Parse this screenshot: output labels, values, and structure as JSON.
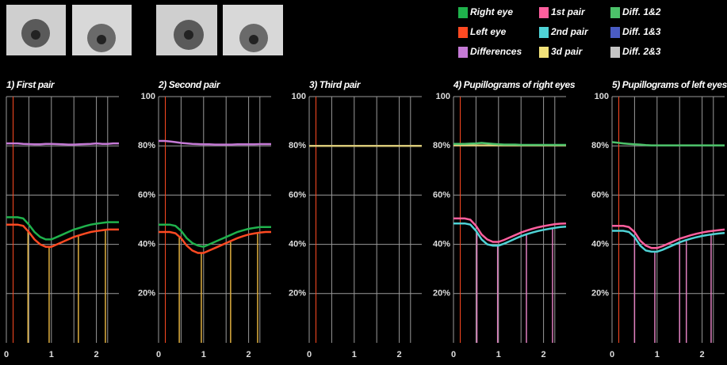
{
  "legend": [
    {
      "label": "Right eye",
      "color": "#1fb24c"
    },
    {
      "label": "Left eye",
      "color": "#ff4a22"
    },
    {
      "label": "Differences",
      "color": "#c57ad6"
    },
    {
      "label": "1st pair",
      "color": "#ff5f9e"
    },
    {
      "label": "2nd pair",
      "color": "#4fd3d6"
    },
    {
      "label": "3d pair",
      "color": "#f2e27a"
    },
    {
      "label": "Diff. 1&2",
      "color": "#4cc26a"
    },
    {
      "label": "Diff. 1&3",
      "color": "#4a5cc4"
    },
    {
      "label": "Diff. 2&3",
      "color": "#c4c4c4"
    }
  ],
  "chart_data": [
    {
      "type": "line",
      "title": "1) First pair",
      "xlim": [
        0,
        2.5
      ],
      "xticks": [
        0,
        1,
        2
      ],
      "ylim": [
        0,
        100
      ],
      "yticks": [
        20,
        40,
        60,
        80,
        100
      ],
      "ytick_labels": false,
      "grid": true,
      "stimulus": 0.15,
      "stimulus_color": "#ff4a22",
      "events": [
        0.48,
        0.95,
        1.6,
        2.2
      ],
      "event_color": "#e0b040",
      "x": [
        0,
        0.125,
        0.25,
        0.375,
        0.5,
        0.625,
        0.75,
        0.875,
        1,
        1.125,
        1.25,
        1.375,
        1.5,
        1.625,
        1.75,
        1.875,
        2,
        2.125,
        2.25,
        2.375,
        2.5
      ],
      "series": [
        {
          "color": "#ff4a22",
          "values": [
            48,
            48,
            48,
            47.5,
            45,
            42,
            40,
            39,
            39,
            40,
            41,
            42,
            43,
            43.7,
            44.4,
            45,
            45.4,
            45.7,
            46,
            46,
            46
          ]
        },
        {
          "color": "#1fb24c",
          "values": [
            51,
            51,
            51,
            50.5,
            48,
            45,
            43,
            42,
            42,
            43,
            44,
            45,
            46,
            46.7,
            47.4,
            48,
            48.4,
            48.7,
            49,
            49,
            49
          ]
        },
        {
          "color": "#c57ad6",
          "values": [
            81,
            81,
            81,
            80.8,
            80.7,
            80.6,
            80.6,
            80.8,
            80.8,
            80.7,
            80.6,
            80.5,
            80.5,
            80.6,
            80.7,
            80.8,
            81,
            80.8,
            80.8,
            81,
            81
          ]
        }
      ]
    },
    {
      "type": "line",
      "title": "2) Second pair",
      "xlim": [
        0,
        2.5
      ],
      "xticks": [
        0,
        1,
        2
      ],
      "ylim": [
        0,
        100
      ],
      "yticks": [
        {
          "value": 20,
          "label": "20%"
        },
        {
          "value": 40,
          "label": "40%"
        },
        {
          "value": 60,
          "label": "60%"
        },
        {
          "value": 80,
          "label": "80%"
        },
        100
      ],
      "ytick_labels": true,
      "grid": true,
      "stimulus": 0.15,
      "stimulus_color": "#ff4a22",
      "events": [
        0.46,
        0.95,
        1.6,
        2.2
      ],
      "event_color": "#e0b040",
      "x": [
        0,
        0.125,
        0.25,
        0.375,
        0.5,
        0.625,
        0.75,
        0.875,
        1,
        1.125,
        1.25,
        1.375,
        1.5,
        1.625,
        1.75,
        1.875,
        2,
        2.125,
        2.25,
        2.375,
        2.5
      ],
      "series": [
        {
          "color": "#ff4a22",
          "values": [
            45,
            45,
            45,
            44.5,
            42.5,
            39.5,
            37.5,
            36.5,
            36.5,
            37.5,
            38.5,
            39.5,
            40.5,
            41.5,
            42.5,
            43.3,
            44,
            44.4,
            44.8,
            45,
            45
          ]
        },
        {
          "color": "#1fb24c",
          "values": [
            48,
            48,
            48,
            47.5,
            45.5,
            42.5,
            40.5,
            39.5,
            39,
            40,
            41,
            42,
            43,
            44,
            45,
            45.7,
            46.3,
            46.7,
            47,
            47,
            47
          ]
        },
        {
          "color": "#c57ad6",
          "values": [
            82,
            82,
            81.8,
            81.5,
            81.2,
            81,
            80.8,
            80.7,
            80.6,
            80.6,
            80.5,
            80.5,
            80.5,
            80.5,
            80.6,
            80.6,
            80.6,
            80.6,
            80.7,
            80.7,
            80.7
          ]
        }
      ]
    },
    {
      "type": "line",
      "title": "3) Third pair",
      "xlim": [
        0,
        2.5
      ],
      "xticks": [
        0,
        1,
        2
      ],
      "ylim": [
        0,
        100
      ],
      "yticks": [
        {
          "value": 20,
          "label": "20%"
        },
        {
          "value": 40,
          "label": "40%"
        },
        {
          "value": 60,
          "label": "60%"
        },
        {
          "value": 80,
          "label": "80%"
        },
        100
      ],
      "ytick_labels": true,
      "grid": true,
      "stimulus": 0.15,
      "stimulus_color": "#ff4a22",
      "events": [],
      "event_color": "#e0b040",
      "x": [
        0,
        0.125,
        0.25,
        0.375,
        0.5,
        0.625,
        0.75,
        0.875,
        1,
        1.125,
        1.25,
        1.375,
        1.5,
        1.625,
        1.75,
        1.875,
        2,
        2.125,
        2.25,
        2.375,
        2.5
      ],
      "series": [
        {
          "color": "#d8c878",
          "values": [
            80,
            80,
            80,
            80,
            80,
            80,
            80,
            80,
            80,
            80,
            80,
            80,
            80,
            80,
            80,
            80,
            80,
            80,
            80,
            80,
            80
          ]
        }
      ]
    },
    {
      "type": "line",
      "title": "4) Pupillograms of right eyes",
      "xlim": [
        0,
        2.5
      ],
      "xticks": [
        0,
        1,
        2
      ],
      "ylim": [
        0,
        100
      ],
      "yticks": [
        {
          "value": 20,
          "label": "20%"
        },
        {
          "value": 40,
          "label": "40%"
        },
        {
          "value": 60,
          "label": "60%"
        },
        {
          "value": 80,
          "label": "80%"
        },
        100
      ],
      "ytick_labels": true,
      "grid": true,
      "stimulus": 0.15,
      "stimulus_color": "#ff4a22",
      "events": [
        0.52,
        0.98,
        1.62,
        2.2
      ],
      "event_color": "#e080c0",
      "x": [
        0,
        0.125,
        0.25,
        0.375,
        0.5,
        0.625,
        0.75,
        0.875,
        1,
        1.125,
        1.25,
        1.375,
        1.5,
        1.625,
        1.75,
        1.875,
        2,
        2.125,
        2.25,
        2.375,
        2.5
      ],
      "series": [
        {
          "color": "#4fd3d6",
          "values": [
            48.5,
            48.5,
            48.5,
            48,
            45.5,
            42,
            40,
            39.5,
            39.5,
            40.3,
            41.3,
            42.3,
            43.3,
            44.1,
            44.8,
            45.4,
            45.9,
            46.3,
            46.7,
            47,
            47.2
          ]
        },
        {
          "color": "#ff5f9e",
          "values": [
            50.5,
            50.5,
            50.5,
            50,
            47.5,
            44,
            42,
            41,
            41,
            41.8,
            42.8,
            43.8,
            44.8,
            45.6,
            46.3,
            46.9,
            47.4,
            47.8,
            48.2,
            48.4,
            48.5
          ]
        },
        {
          "color": "#d8c878",
          "values": [
            80.2,
            80.2,
            80.2,
            80.2,
            80.2,
            80.2,
            80.2,
            80.2,
            80.2,
            80.2,
            80.2,
            80.2,
            80.2,
            80.2,
            80.2,
            80.2,
            80.2,
            80.2,
            80.2,
            80.2,
            80.2
          ]
        },
        {
          "color": "#4cc26a",
          "values": [
            80.8,
            80.8,
            80.8,
            80.9,
            81,
            81.2,
            81,
            80.8,
            80.6,
            80.5,
            80.5,
            80.5,
            80.4,
            80.4,
            80.4,
            80.4,
            80.4,
            80.4,
            80.4,
            80.4,
            80.4
          ]
        }
      ]
    },
    {
      "type": "line",
      "title": "5) Pupillograms of left eyes",
      "xlim": [
        0,
        2.5
      ],
      "xticks": [
        0,
        1,
        2
      ],
      "ylim": [
        0,
        100
      ],
      "yticks": [
        {
          "value": 20,
          "label": "20%"
        },
        {
          "value": 40,
          "label": "40%"
        },
        {
          "value": 60,
          "label": "60%"
        },
        {
          "value": 80,
          "label": "80%"
        },
        100
      ],
      "ytick_labels": true,
      "grid": true,
      "stimulus": 0.15,
      "stimulus_color": "#ff4a22",
      "events": [
        0.5,
        0.95,
        1.5,
        1.65,
        2.2
      ],
      "event_color": "#e080c0",
      "x": [
        0,
        0.125,
        0.25,
        0.375,
        0.5,
        0.625,
        0.75,
        0.875,
        1,
        1.125,
        1.25,
        1.375,
        1.5,
        1.625,
        1.75,
        1.875,
        2,
        2.125,
        2.25,
        2.375,
        2.5
      ],
      "series": [
        {
          "color": "#4fd3d6",
          "values": [
            45.5,
            45.5,
            45.5,
            45,
            43,
            39.5,
            37.5,
            37,
            37,
            37.8,
            38.8,
            39.8,
            40.8,
            41.6,
            42.3,
            42.9,
            43.4,
            43.8,
            44.1,
            44.4,
            44.6
          ]
        },
        {
          "color": "#ff5f9e",
          "values": [
            47.5,
            47.5,
            47.5,
            47,
            45,
            41.5,
            39.5,
            38.5,
            38.5,
            39.3,
            40.3,
            41.3,
            42.3,
            43,
            43.7,
            44.3,
            44.8,
            45.2,
            45.5,
            45.8,
            46
          ]
        },
        {
          "color": "#4cc26a",
          "values": [
            81.5,
            81.3,
            81,
            80.8,
            80.6,
            80.5,
            80.3,
            80.2,
            80.2,
            80.2,
            80.2,
            80.2,
            80.2,
            80.2,
            80.2,
            80.2,
            80.2,
            80.2,
            80.2,
            80.2,
            80.2
          ]
        }
      ]
    }
  ]
}
